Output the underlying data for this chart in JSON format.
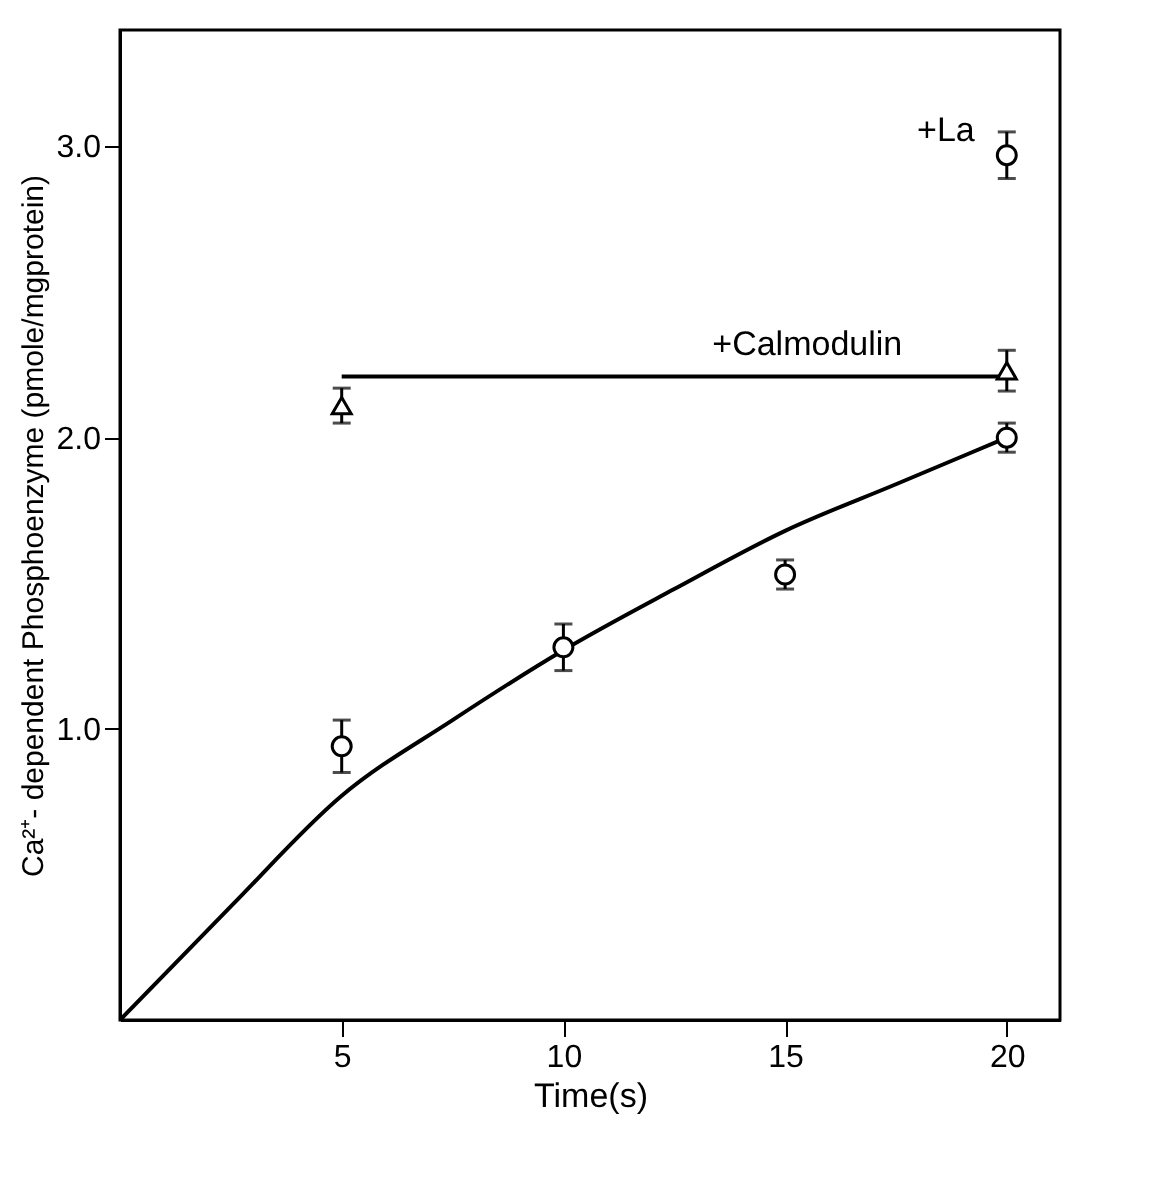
{
  "chart_data": {
    "type": "scatter",
    "xlabel": "Time(s)",
    "ylabel": "Ca²⁺- dependent Phosphoenzyme (pmole/mgprotein)",
    "xlim": [
      0,
      21.2
    ],
    "ylim": [
      0,
      3.4
    ],
    "xticks": [
      5,
      10,
      15,
      20
    ],
    "yticks": [
      {
        "value": 1,
        "label": "1.0"
      },
      {
        "value": 2,
        "label": "2.0"
      },
      {
        "value": 3,
        "label": "3.0"
      }
    ],
    "grid": false,
    "series": [
      {
        "type": "line",
        "line_style": "solid",
        "color": "#000000",
        "marker": "none",
        "x": [
          0,
          2.5,
          5,
          7.5,
          10,
          12.5,
          15,
          17.5,
          20
        ],
        "values": [
          0,
          0.39,
          0.77,
          1.03,
          1.27,
          1.48,
          1.68,
          1.84,
          2.0
        ]
      },
      {
        "type": "line",
        "line_style": "solid",
        "color": "#000000",
        "marker": "none",
        "x": [
          5,
          20
        ],
        "values": [
          2.21,
          2.21
        ]
      },
      {
        "color": "#000000",
        "marker": "circle",
        "x": [
          5,
          10,
          15,
          20
        ],
        "values": [
          0.94,
          1.28,
          1.53,
          2.0
        ],
        "errors": [
          0.09,
          0.08,
          0.05,
          0.05
        ]
      },
      {
        "color": "#000000",
        "marker": "triangle",
        "x": [
          5,
          20
        ],
        "values": [
          2.11,
          2.23
        ],
        "errors": [
          0.06,
          0.07
        ]
      },
      {
        "color": "#000000",
        "marker": "circle",
        "x": [
          20
        ],
        "values": [
          2.97
        ],
        "errors": [
          0.08
        ]
      }
    ],
    "annotations": [
      {
        "text": "+La",
        "x": 20,
        "y": 2.97
      },
      {
        "text": "+Calmodulin",
        "x": 15.5,
        "y": 2.21
      }
    ]
  }
}
